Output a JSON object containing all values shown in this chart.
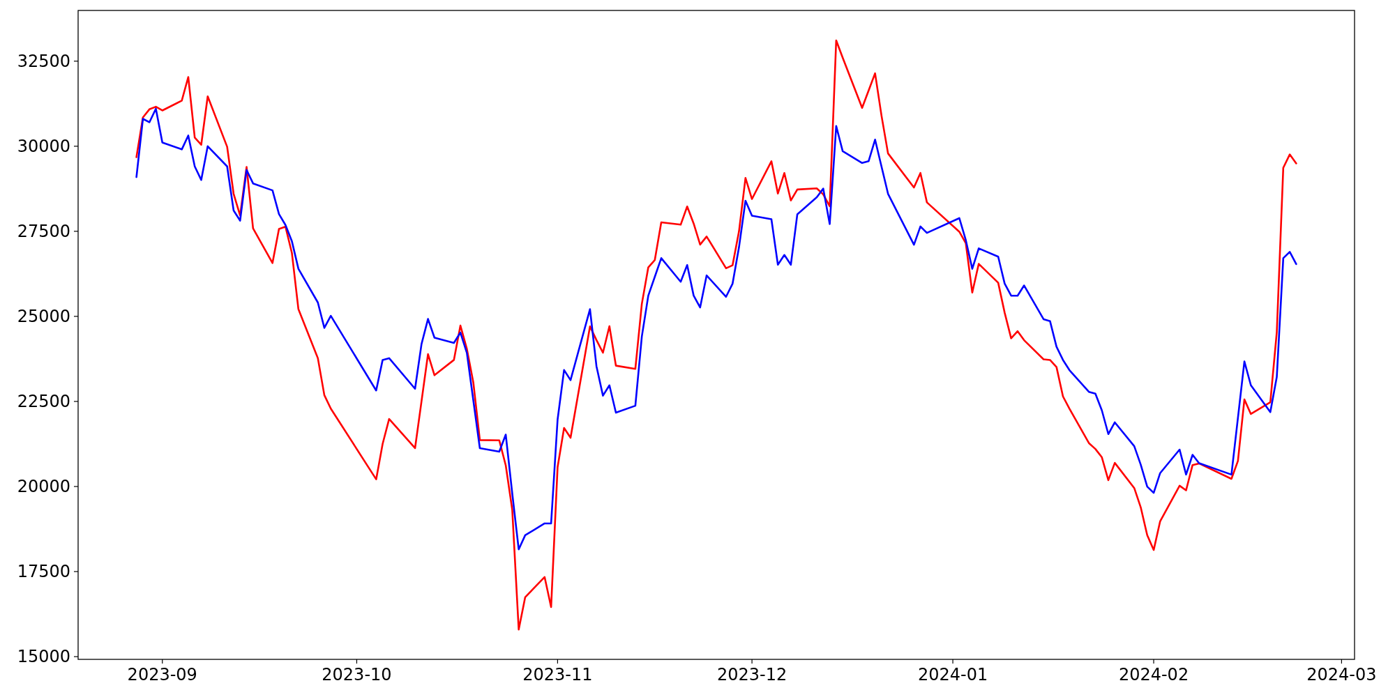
{
  "chart_data": {
    "type": "line",
    "x": [
      "2023-08-28",
      "2023-08-29",
      "2023-08-30",
      "2023-08-31",
      "2023-09-01",
      "2023-09-04",
      "2023-09-05",
      "2023-09-06",
      "2023-09-07",
      "2023-09-08",
      "2023-09-11",
      "2023-09-12",
      "2023-09-13",
      "2023-09-14",
      "2023-09-15",
      "2023-09-18",
      "2023-09-19",
      "2023-09-20",
      "2023-09-21",
      "2023-09-22",
      "2023-09-25",
      "2023-09-26",
      "2023-09-27",
      "2023-10-04",
      "2023-10-05",
      "2023-10-06",
      "2023-10-10",
      "2023-10-11",
      "2023-10-12",
      "2023-10-13",
      "2023-10-16",
      "2023-10-17",
      "2023-10-18",
      "2023-10-19",
      "2023-10-20",
      "2023-10-23",
      "2023-10-24",
      "2023-10-25",
      "2023-10-26",
      "2023-10-27",
      "2023-10-30",
      "2023-10-31",
      "2023-11-01",
      "2023-11-02",
      "2023-11-03",
      "2023-11-06",
      "2023-11-07",
      "2023-11-08",
      "2023-11-09",
      "2023-11-10",
      "2023-11-13",
      "2023-11-14",
      "2023-11-15",
      "2023-11-16",
      "2023-11-17",
      "2023-11-20",
      "2023-11-21",
      "2023-11-22",
      "2023-11-23",
      "2023-11-24",
      "2023-11-27",
      "2023-11-28",
      "2023-11-29",
      "2023-11-30",
      "2023-12-01",
      "2023-12-04",
      "2023-12-05",
      "2023-12-06",
      "2023-12-07",
      "2023-12-08",
      "2023-12-11",
      "2023-12-12",
      "2023-12-13",
      "2023-12-14",
      "2023-12-15",
      "2023-12-18",
      "2023-12-19",
      "2023-12-20",
      "2023-12-21",
      "2023-12-22",
      "2023-12-26",
      "2023-12-27",
      "2023-12-28",
      "2024-01-02",
      "2024-01-03",
      "2024-01-04",
      "2024-01-05",
      "2024-01-08",
      "2024-01-09",
      "2024-01-10",
      "2024-01-11",
      "2024-01-12",
      "2024-01-15",
      "2024-01-16",
      "2024-01-17",
      "2024-01-18",
      "2024-01-19",
      "2024-01-22",
      "2024-01-23",
      "2024-01-24",
      "2024-01-25",
      "2024-01-26",
      "2024-01-29",
      "2024-01-30",
      "2024-01-31",
      "2024-02-01",
      "2024-02-02",
      "2024-02-05",
      "2024-02-06",
      "2024-02-07",
      "2024-02-08",
      "2024-02-13",
      "2024-02-14",
      "2024-02-15",
      "2024-02-16",
      "2024-02-19",
      "2024-02-20",
      "2024-02-21",
      "2024-02-22",
      "2024-02-23"
    ],
    "series": [
      {
        "color": "#ff0000",
        "values": [
          29678,
          30847,
          31085,
          31161,
          31051,
          31339,
          32034,
          30254,
          30042,
          31466,
          29983,
          28602,
          27966,
          29390,
          27585,
          26568,
          27568,
          27636,
          26856,
          25212,
          23771,
          22686,
          22288,
          20212,
          21254,
          21983,
          21127,
          22508,
          23890,
          23271,
          23720,
          24729,
          24042,
          23051,
          21364,
          21356,
          20619,
          19322,
          15796,
          16746,
          17339,
          16458,
          20568,
          21720,
          21432,
          24703,
          24305,
          23932,
          24712,
          23551,
          23458,
          25364,
          26440,
          26652,
          27763,
          27695,
          28229,
          27729,
          27110,
          27347,
          26415,
          26500,
          27500,
          29068,
          28449,
          29559,
          28610,
          29212,
          28407,
          28729,
          28762,
          28585,
          28237,
          33110,
          32602,
          31127,
          31636,
          32144,
          30890,
          29788,
          28786,
          29213,
          28350,
          27488,
          27152,
          25699,
          26543,
          25989,
          25108,
          24356,
          24563,
          24300,
          23738,
          23719,
          23510,
          22647,
          22286,
          21276,
          21103,
          20859,
          20186,
          20694,
          19955,
          19389,
          18571,
          18134,
          18980,
          20024,
          19888,
          20631,
          20677,
          20225,
          20750,
          22558,
          22131,
          22474,
          24537,
          29367,
          29758,
          29494
        ]
      },
      {
        "color": "#0000ff",
        "values": [
          29093,
          30805,
          30703,
          31102,
          30110,
          29907,
          30314,
          29407,
          29008,
          30000,
          29407,
          28110,
          27813,
          29305,
          28907,
          28703,
          28008,
          27686,
          27203,
          26398,
          25407,
          24661,
          25017,
          22822,
          23720,
          23771,
          22873,
          24187,
          24924,
          24373,
          24220,
          24526,
          23924,
          22525,
          21127,
          21025,
          21525,
          19800,
          18152,
          18568,
          18915,
          18915,
          21966,
          23424,
          23127,
          25212,
          23534,
          22670,
          22975,
          22170,
          22373,
          24406,
          25610,
          26161,
          26712,
          26017,
          26508,
          25610,
          25263,
          26203,
          25576,
          25957,
          27034,
          28398,
          27957,
          27856,
          26517,
          26805,
          26517,
          28000,
          28500,
          28754,
          27712,
          30593,
          29856,
          29508,
          29559,
          30195,
          29398,
          28602,
          27106,
          27643,
          27452,
          27887,
          27242,
          26398,
          26998,
          26754,
          25963,
          25608,
          25608,
          25908,
          24918,
          24862,
          24110,
          23719,
          23420,
          22783,
          22729,
          22238,
          21541,
          21885,
          21186,
          20642,
          19997,
          19814,
          20395,
          21085,
          20351,
          20932,
          20686,
          20351,
          22013,
          23675,
          22975,
          22186,
          23220,
          26710,
          26896,
          26535
        ]
      }
    ],
    "xlim": [
      "2023-08-19",
      "2024-03-03"
    ],
    "xticks": [
      "2023-09",
      "2023-10",
      "2023-11",
      "2023-12",
      "2024-01",
      "2024-02",
      "2024-03"
    ],
    "ylim": [
      14920,
      33990
    ],
    "yticks": [
      15000,
      17500,
      20000,
      22500,
      25000,
      27500,
      30000,
      32500
    ]
  }
}
